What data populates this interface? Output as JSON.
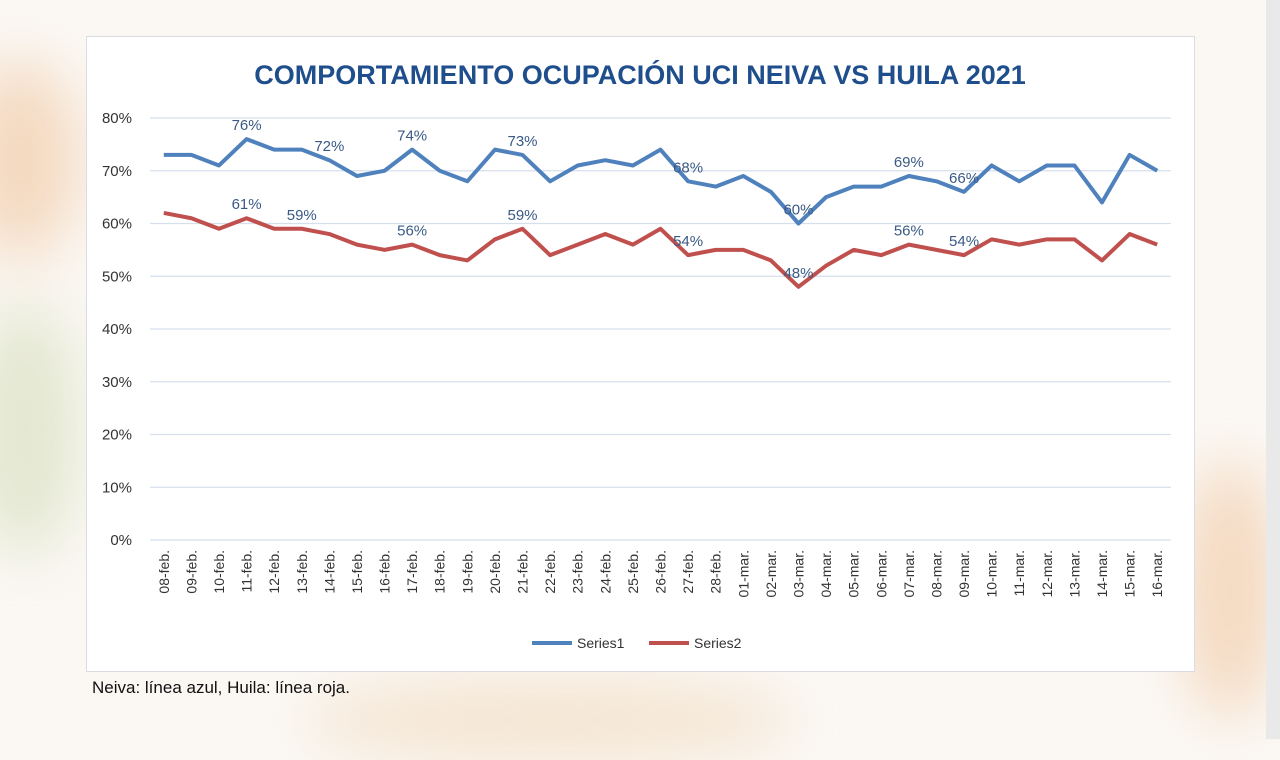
{
  "caption": "Neiva: línea azul, Huila: línea roja.",
  "chart_data": {
    "type": "line",
    "title": "COMPORTAMIENTO OCUPACIÓN UCI NEIVA VS HUILA 2021",
    "xlabel": "",
    "ylabel": "",
    "ylim": [
      0,
      80
    ],
    "y_ticks": [
      "0%",
      "10%",
      "20%",
      "30%",
      "40%",
      "50%",
      "60%",
      "70%",
      "80%"
    ],
    "grid": true,
    "legend_position": "bottom",
    "categories": [
      "08-feb.",
      "09-feb.",
      "10-feb.",
      "11-feb.",
      "12-feb.",
      "13-feb.",
      "14-feb.",
      "15-feb.",
      "16-feb.",
      "17-feb.",
      "18-feb.",
      "19-feb.",
      "20-feb.",
      "21-feb.",
      "22-feb.",
      "23-feb.",
      "24-feb.",
      "25-feb.",
      "26-feb.",
      "27-feb.",
      "28-feb.",
      "01-mar.",
      "02-mar.",
      "03-mar.",
      "04-mar.",
      "05-mar.",
      "06-mar.",
      "07-mar.",
      "08-mar.",
      "09-mar.",
      "10-mar.",
      "11-mar.",
      "12-mar.",
      "13-mar.",
      "14-mar.",
      "15-mar.",
      "16-mar."
    ],
    "series": [
      {
        "name": "Series1",
        "color": "#4f81bd",
        "values": [
          73,
          73,
          71,
          76,
          74,
          74,
          72,
          69,
          70,
          74,
          70,
          68,
          74,
          73,
          68,
          71,
          72,
          71,
          74,
          68,
          67,
          69,
          66,
          60,
          65,
          67,
          67,
          69,
          68,
          66,
          71,
          68,
          71,
          71,
          64,
          73,
          70
        ],
        "data_labels": [
          {
            "index": 3,
            "text": "76%"
          },
          {
            "index": 6,
            "text": "72%"
          },
          {
            "index": 9,
            "text": "74%"
          },
          {
            "index": 13,
            "text": "73%"
          },
          {
            "index": 19,
            "text": "68%"
          },
          {
            "index": 23,
            "text": "60%"
          },
          {
            "index": 27,
            "text": "69%"
          },
          {
            "index": 29,
            "text": "66%"
          }
        ]
      },
      {
        "name": "Series2",
        "color": "#c0504d",
        "values": [
          62,
          61,
          59,
          61,
          59,
          59,
          58,
          56,
          55,
          56,
          54,
          53,
          57,
          59,
          54,
          56,
          58,
          56,
          59,
          54,
          55,
          55,
          53,
          48,
          52,
          55,
          54,
          56,
          55,
          54,
          57,
          56,
          57,
          57,
          53,
          58,
          56
        ],
        "data_labels": [
          {
            "index": 3,
            "text": "61%"
          },
          {
            "index": 5,
            "text": "59%"
          },
          {
            "index": 9,
            "text": "56%"
          },
          {
            "index": 13,
            "text": "59%"
          },
          {
            "index": 19,
            "text": "54%"
          },
          {
            "index": 23,
            "text": "48%"
          },
          {
            "index": 27,
            "text": "56%"
          },
          {
            "index": 29,
            "text": "54%"
          }
        ]
      }
    ]
  }
}
